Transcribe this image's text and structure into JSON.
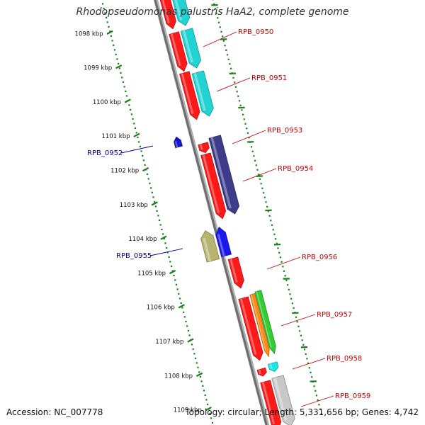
{
  "title": "Rhodopseudomonas palustris HaA2, complete genome",
  "footer": {
    "accession": "Accession: NC_007778",
    "topology": "Topology: circular; Length: 5,331,656 bp; Genes: 4,742"
  },
  "colors": {
    "backbone": "#8c8c8c",
    "ticks": "#1a7f1a",
    "forward_label": "#cc0000",
    "reverse_label": "#000099"
  },
  "kbp_labels": [
    "1098 kbp",
    "1099 kbp",
    "1100 kbp",
    "1101 kbp",
    "1102 kbp",
    "1103 kbp",
    "1104 kbp",
    "1105 kbp",
    "1106 kbp",
    "1107 kbp",
    "1108 kbp",
    "1109 kbp"
  ],
  "gene_labels": [
    {
      "text": "RPB_0950",
      "strand": "forward"
    },
    {
      "text": "RPB_0951",
      "strand": "forward"
    },
    {
      "text": "RPB_0953",
      "strand": "forward"
    },
    {
      "text": "RPB_0954",
      "strand": "forward"
    },
    {
      "text": "RPB_0956",
      "strand": "forward"
    },
    {
      "text": "RPB_0957",
      "strand": "forward"
    },
    {
      "text": "RPB_0958",
      "strand": "forward"
    },
    {
      "text": "RPB_0959",
      "strand": "forward"
    },
    {
      "text": "RPB_0952",
      "strand": "reverse"
    },
    {
      "text": "RPB_0955",
      "strand": "reverse"
    }
  ]
}
